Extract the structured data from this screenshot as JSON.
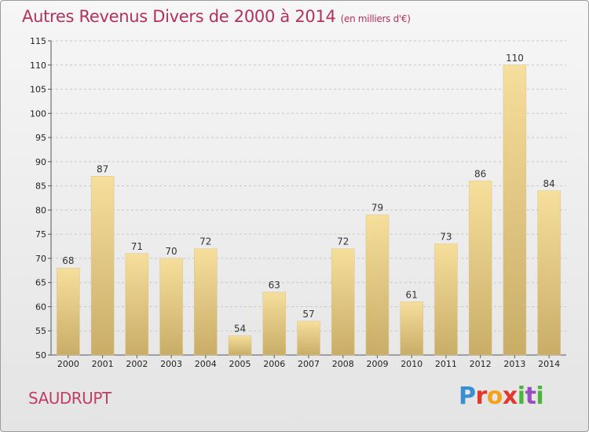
{
  "chart_data": {
    "type": "bar",
    "title": "Autres Revenus Divers de 2000 à 2014",
    "subtitle": "(en milliers d'€)",
    "categories": [
      "2000",
      "2001",
      "2002",
      "2003",
      "2004",
      "2005",
      "2006",
      "2007",
      "2008",
      "2009",
      "2010",
      "2011",
      "2012",
      "2013",
      "2014"
    ],
    "values": [
      68,
      87,
      71,
      70,
      72,
      54,
      63,
      57,
      72,
      79,
      61,
      73,
      86,
      110,
      84
    ],
    "ylim": [
      50,
      115
    ],
    "yticks": [
      50,
      55,
      60,
      65,
      70,
      75,
      80,
      85,
      90,
      95,
      100,
      105,
      110,
      115
    ],
    "grid": true,
    "bar_color_top": "#f6de9c",
    "bar_color_bottom": "#c9ad67"
  },
  "footer": {
    "commune": "SAUDRUPT",
    "logo": "Proxiti"
  },
  "colors": {
    "title": "#b3315b",
    "commune": "#c13e66"
  }
}
